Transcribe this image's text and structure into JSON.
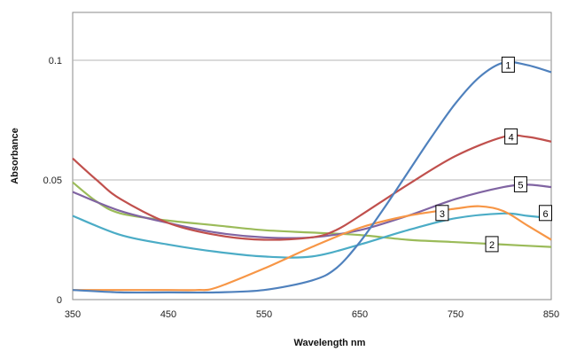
{
  "chart_data": {
    "type": "line",
    "title": "",
    "xlabel": "Wavelength nm",
    "ylabel": "Absorbance",
    "xlim": [
      350,
      850
    ],
    "ylim": [
      0,
      0.12
    ],
    "xticks": [
      "350",
      "450",
      "550",
      "650",
      "750",
      "850"
    ],
    "yticks": [
      "0",
      "0.05",
      "0.1"
    ],
    "grid": "horizontal",
    "series": [
      {
        "label": "1",
        "color": "#4f81bd",
        "x": [
          350,
          400,
          450,
          500,
          550,
          600,
          625,
          650,
          675,
          700,
          725,
          750,
          775,
          800,
          825,
          850
        ],
        "y": [
          0.004,
          0.003,
          0.003,
          0.003,
          0.004,
          0.008,
          0.013,
          0.024,
          0.038,
          0.053,
          0.068,
          0.082,
          0.093,
          0.099,
          0.098,
          0.095
        ]
      },
      {
        "label": "2",
        "color": "#9bbb59",
        "x": [
          350,
          375,
          400,
          450,
          500,
          550,
          600,
          650,
          700,
          750,
          800,
          850
        ],
        "y": [
          0.049,
          0.041,
          0.036,
          0.033,
          0.031,
          0.029,
          0.028,
          0.027,
          0.025,
          0.024,
          0.023,
          0.022
        ]
      },
      {
        "label": "3",
        "color": "#f79646",
        "x": [
          350,
          400,
          450,
          480,
          500,
          550,
          600,
          650,
          700,
          750,
          775,
          800,
          825,
          850
        ],
        "y": [
          0.004,
          0.004,
          0.004,
          0.004,
          0.005,
          0.013,
          0.022,
          0.03,
          0.035,
          0.038,
          0.039,
          0.037,
          0.031,
          0.025
        ]
      },
      {
        "label": "4",
        "color": "#c0504d",
        "x": [
          350,
          375,
          400,
          450,
          500,
          550,
          600,
          625,
          650,
          700,
          750,
          800,
          825,
          850
        ],
        "y": [
          0.059,
          0.05,
          0.042,
          0.032,
          0.027,
          0.025,
          0.026,
          0.029,
          0.035,
          0.048,
          0.06,
          0.068,
          0.068,
          0.066
        ]
      },
      {
        "label": "5",
        "color": "#8064a2",
        "x": [
          350,
          400,
          450,
          500,
          550,
          600,
          650,
          700,
          750,
          800,
          825,
          850
        ],
        "y": [
          0.045,
          0.037,
          0.032,
          0.028,
          0.026,
          0.026,
          0.029,
          0.035,
          0.042,
          0.047,
          0.048,
          0.047
        ]
      },
      {
        "label": "6",
        "color": "#4bacc6",
        "x": [
          350,
          400,
          450,
          500,
          550,
          600,
          650,
          700,
          750,
          800,
          825,
          850
        ],
        "y": [
          0.035,
          0.027,
          0.023,
          0.02,
          0.018,
          0.018,
          0.023,
          0.029,
          0.034,
          0.036,
          0.035,
          0.034
        ]
      }
    ]
  }
}
